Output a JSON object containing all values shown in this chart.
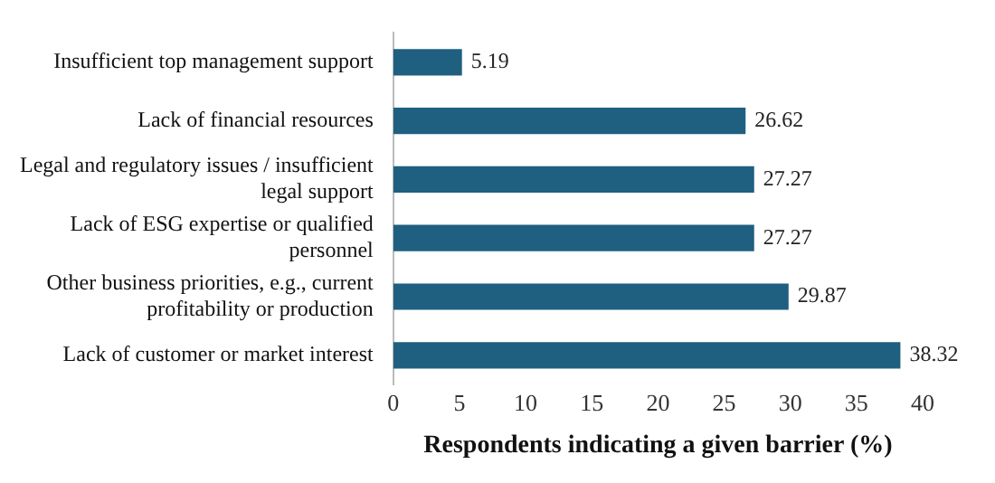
{
  "chart_data": {
    "type": "bar",
    "orientation": "horizontal",
    "xlabel": "Respondents indicating a given barrier (%)",
    "categories": [
      "Insufficient top management support",
      "Lack of financial resources",
      "Legal and regulatory issues / insufficient legal support",
      "Lack of ESG expertise or qualified personnel",
      "Other business priorities, e.g., current profitability or production",
      "Lack of customer or market interest"
    ],
    "values": [
      5.19,
      26.62,
      27.27,
      27.27,
      29.87,
      38.32
    ],
    "color": "#1f5f80",
    "xlim": [
      0,
      40
    ],
    "xticks": [
      0,
      5,
      10,
      15,
      20,
      25,
      30,
      35,
      40
    ],
    "grid": false,
    "legend": false,
    "data_labels": true
  }
}
